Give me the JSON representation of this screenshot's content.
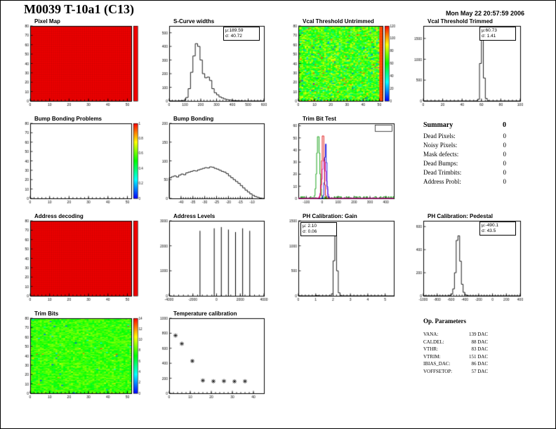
{
  "header": {
    "title": "M0039 T-10a1 (C13)",
    "date": "Mon May 22 20:57:59 2006"
  },
  "summary": {
    "title": "Summary",
    "total": "0",
    "rows": [
      {
        "label": "Dead Pixels:",
        "value": "0"
      },
      {
        "label": "Noisy Pixels:",
        "value": "0"
      },
      {
        "label": "Mask defects:",
        "value": "0"
      },
      {
        "label": "Dead Bumps:",
        "value": "0"
      },
      {
        "label": "Dead Trimbits:",
        "value": "0"
      },
      {
        "label": "Address Probl:",
        "value": "0"
      }
    ]
  },
  "op_parameters": {
    "title": "Op. Parameters",
    "rows": [
      {
        "label": "VANA:",
        "value": "139 DAC"
      },
      {
        "label": "CALDEL:",
        "value": "88 DAC"
      },
      {
        "label": "VTHR:",
        "value": "83 DAC"
      },
      {
        "label": "VTRIM:",
        "value": "151 DAC"
      },
      {
        "label": "IBIAS_DAC:",
        "value": "86 DAC"
      },
      {
        "label": "VOFFSETOP:",
        "value": "57 DAC"
      }
    ]
  },
  "chart_data": [
    {
      "id": "pixel_map",
      "type": "heatmap",
      "title": "Pixel Map",
      "style": "solid",
      "color": "#f20000",
      "grid": true,
      "cols": 52,
      "rows": 80,
      "colorbar": "solid-red",
      "xlim": [
        0,
        52
      ],
      "ylim": [
        0,
        80
      ],
      "xticks": [
        0,
        10,
        20,
        30,
        40,
        50
      ],
      "yticks": [
        0,
        10,
        20,
        30,
        40,
        50,
        60,
        70,
        80
      ]
    },
    {
      "id": "scurve_widths",
      "type": "histogram",
      "title": "S-Curve widths",
      "stats": {
        "lines": [
          "μ:189.59",
          "σ: 40.72"
        ],
        "pos": "tr"
      },
      "xlim": [
        0,
        600
      ],
      "bin_start": 0,
      "bin_width": 15,
      "ymax": 550,
      "counts": [
        0,
        0,
        0,
        0,
        1,
        2,
        5,
        25,
        90,
        210,
        330,
        420,
        400,
        300,
        200,
        170,
        175,
        150,
        90,
        60,
        45,
        30,
        22,
        15,
        10,
        7,
        5,
        3,
        2,
        1,
        1,
        0,
        0,
        0,
        0,
        0,
        0,
        0,
        0,
        0
      ],
      "xticks": [
        0,
        100,
        200,
        300,
        400,
        500,
        600
      ],
      "yticks": [
        0,
        100,
        200,
        300,
        400,
        500
      ]
    },
    {
      "id": "vcal_untrimmed",
      "type": "heatmap",
      "title": "Vcal Threshold Untrimmed",
      "style": "noise",
      "base": 0.55,
      "spread": 0.34,
      "outlier": 0.1,
      "right_edge": "red",
      "cols": 52,
      "rows": 80,
      "colorbar": "rainbow",
      "zticks": [
        0,
        20,
        40,
        60,
        80,
        100,
        120
      ],
      "xlim": [
        0,
        52
      ],
      "ylim": [
        0,
        80
      ],
      "xticks": [
        0,
        10,
        20,
        30,
        40,
        50
      ],
      "yticks": [
        0,
        10,
        20,
        30,
        40,
        50,
        60,
        70,
        80
      ]
    },
    {
      "id": "vcal_trimmed",
      "type": "histogram",
      "title": "Vcal Threshold Trimmed",
      "stats": {
        "lines": [
          "μ:60.73",
          "σ: 1.41"
        ],
        "pos": "tr"
      },
      "xlim": [
        0,
        100
      ],
      "bin_start": 0,
      "bin_width": 2,
      "ymax": 1800,
      "counts": [
        0,
        0,
        0,
        0,
        0,
        0,
        0,
        0,
        0,
        0,
        0,
        0,
        0,
        0,
        0,
        0,
        0,
        0,
        0,
        0,
        0,
        0,
        0,
        0,
        0,
        0,
        0,
        3,
        40,
        900,
        1500,
        550,
        60,
        5,
        0,
        0,
        0,
        0,
        0,
        0,
        0,
        0,
        0,
        0,
        0,
        0,
        0,
        0,
        0,
        0
      ],
      "xticks": [
        0,
        20,
        40,
        60,
        80,
        100
      ],
      "yticks": [
        0,
        500,
        1000,
        1500
      ]
    },
    {
      "id": "bump_problems",
      "type": "heatmap",
      "title": "Bump Bonding Problems",
      "style": "empty",
      "cols": 52,
      "rows": 80,
      "colorbar": "rainbow",
      "zticks": [
        0,
        0.2,
        0.4,
        0.6,
        0.8,
        1
      ],
      "xlim": [
        0,
        52
      ],
      "ylim": [
        0,
        80
      ],
      "xticks": [
        0,
        10,
        20,
        30,
        40,
        50
      ],
      "yticks": [
        0,
        10,
        20,
        30,
        40,
        50,
        60,
        70,
        80
      ]
    },
    {
      "id": "bump_bonding",
      "type": "histogram",
      "title": "Bump Bonding",
      "xlim": [
        -45,
        -5
      ],
      "bin_start": -45,
      "bin_width": 1,
      "ymax": 200,
      "counts": [
        55,
        58,
        60,
        57,
        62,
        65,
        63,
        68,
        70,
        72,
        74,
        73,
        76,
        78,
        80,
        82,
        81,
        84,
        83,
        80,
        78,
        75,
        72,
        70,
        66,
        60,
        55,
        50,
        45,
        40,
        34,
        28,
        22,
        17,
        12,
        8,
        5,
        3,
        1,
        0
      ],
      "xticks": [
        -40,
        -35,
        -30,
        -25,
        -20,
        -15,
        -10
      ],
      "yticks": [
        0,
        50,
        100,
        150,
        200
      ]
    },
    {
      "id": "trimbit_test",
      "type": "multi_histogram",
      "title": "Trim Bit Test",
      "xlim": [
        -150,
        450
      ],
      "bin_width": 5,
      "ymax": 62,
      "mini_box": true,
      "series": [
        {
          "color": "#009900",
          "center": -25,
          "sigma": 9,
          "height": 53,
          "comb": true
        },
        {
          "color": "#cc00cc",
          "center": 12,
          "sigma": 12,
          "height": 33
        },
        {
          "color": "#0000dd",
          "center": 22,
          "sigma": 6,
          "height": 45
        },
        {
          "color": "#dd0000",
          "center": 5,
          "sigma": 7,
          "height": 55
        }
      ],
      "xticks": [
        -100,
        0,
        100,
        200,
        300,
        400
      ],
      "yticks": [
        0,
        10,
        20,
        30,
        40,
        50,
        60
      ]
    },
    {
      "id": "address_decoding",
      "type": "heatmap",
      "title": "Address decoding",
      "style": "solid",
      "color": "#f20000",
      "grid": true,
      "cols": 52,
      "rows": 80,
      "colorbar": "solid-red",
      "xlim": [
        0,
        52
      ],
      "ylim": [
        0,
        80
      ],
      "xticks": [
        0,
        10,
        20,
        30,
        40,
        50
      ],
      "yticks": [
        0,
        10,
        20,
        30,
        40,
        50,
        60,
        70,
        80
      ]
    },
    {
      "id": "address_levels",
      "type": "spikes",
      "title": "Address Levels",
      "xlim": [
        -4000,
        4000
      ],
      "ymax": 3000,
      "spikes": [
        [
          -1400,
          2600
        ],
        [
          -200,
          2700
        ],
        [
          400,
          2750
        ],
        [
          1000,
          2650
        ],
        [
          1600,
          2550
        ],
        [
          2200,
          2700
        ],
        [
          2800,
          2600
        ]
      ],
      "xticks": [
        -4000,
        -2000,
        0,
        2000,
        4000
      ],
      "yticks": [
        0,
        1000,
        2000,
        3000
      ]
    },
    {
      "id": "ph_gain",
      "type": "histogram",
      "title": "PH Calibration: Gain",
      "stats": {
        "lines": [
          "μ: 2.10",
          "σ: 0.06"
        ],
        "pos": "tl"
      },
      "xlim": [
        0,
        5.5
      ],
      "bin_start": 0,
      "bin_width": 0.1,
      "ymax": 1500,
      "counts": [
        0,
        0,
        0,
        0,
        0,
        0,
        0,
        0,
        0,
        0,
        8,
        4,
        0,
        0,
        0,
        0,
        0,
        0,
        0,
        40,
        700,
        1200,
        500,
        60,
        10,
        0,
        0,
        0,
        0,
        0,
        0,
        0,
        0,
        0,
        0,
        0,
        0,
        0,
        0,
        0,
        0,
        0,
        0,
        0,
        0,
        0,
        0,
        0,
        0,
        0,
        0,
        0,
        0,
        0,
        0
      ],
      "xticks": [
        0,
        1,
        2,
        3,
        4,
        5
      ],
      "yticks": [
        0,
        500,
        1000,
        1500
      ]
    },
    {
      "id": "ph_pedestal",
      "type": "histogram",
      "title": "PH Calibration: Pedestal",
      "stats": {
        "lines": [
          "μ:-490.1",
          "σ: 43.5"
        ],
        "pos": "tr"
      },
      "xlim": [
        -1000,
        400
      ],
      "bin_start": -1000,
      "bin_width": 25,
      "ymax": 650,
      "counts": [
        0,
        0,
        0,
        0,
        0,
        0,
        0,
        0,
        0,
        0,
        0,
        0,
        0,
        0,
        0,
        5,
        15,
        60,
        200,
        480,
        520,
        300,
        100,
        30,
        8,
        2,
        0,
        0,
        0,
        0,
        0,
        0,
        0,
        0,
        0,
        0,
        0,
        0,
        0,
        0,
        0,
        0,
        0,
        0,
        0,
        0,
        0,
        0,
        0,
        0,
        0,
        0,
        0,
        0,
        0,
        0
      ],
      "xticks": [
        -1000,
        -800,
        -600,
        -400,
        -200,
        0,
        200,
        400
      ],
      "yticks": [
        0,
        200,
        400,
        600
      ]
    },
    {
      "id": "trim_bits",
      "type": "heatmap",
      "title": "Trim Bits",
      "style": "noise",
      "base": 0.55,
      "spread": 0.18,
      "outlier": 0.02,
      "cols": 52,
      "rows": 80,
      "colorbar": "rainbow",
      "zticks": [
        0,
        2,
        4,
        6,
        8,
        10,
        12,
        14
      ],
      "xlim": [
        0,
        52
      ],
      "ylim": [
        0,
        80
      ],
      "xticks": [
        0,
        10,
        20,
        30,
        40,
        50
      ],
      "yticks": [
        0,
        10,
        20,
        30,
        40,
        50,
        60,
        70,
        80
      ]
    },
    {
      "id": "temp_calibration",
      "type": "scatter",
      "title": "Temperature calibration",
      "marker": "asterisk",
      "xlim": [
        0,
        45
      ],
      "ylim": [
        0,
        1000
      ],
      "points": [
        [
          3,
          770
        ],
        [
          6,
          660
        ],
        [
          11,
          430
        ],
        [
          16,
          170
        ],
        [
          21,
          160
        ],
        [
          26,
          162
        ],
        [
          31,
          158
        ],
        [
          36,
          160
        ]
      ],
      "xticks": [
        0,
        10,
        20,
        30,
        40
      ],
      "yticks": [
        0,
        200,
        400,
        600,
        800,
        1000
      ]
    }
  ]
}
